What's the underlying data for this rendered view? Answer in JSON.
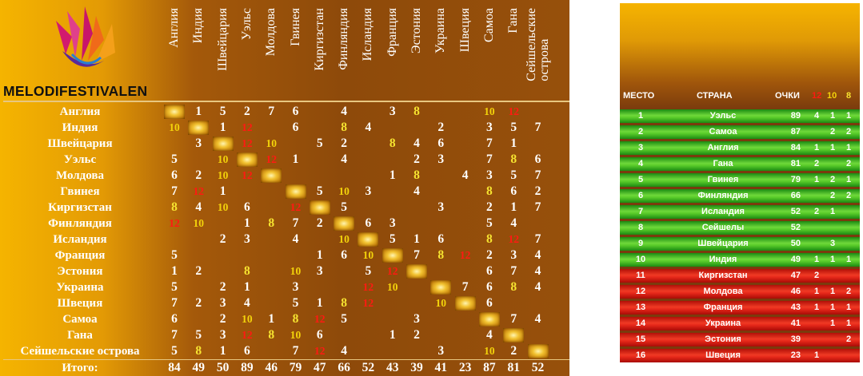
{
  "brand": {
    "logo_text": "MELODIFESTIVALEN"
  },
  "scoreboard": {
    "columns": [
      "Англия",
      "Индия",
      "Швейцария",
      "Уэльс",
      "Молдова",
      "Гвинея",
      "Киргизстан",
      "Финляндия",
      "Исландия",
      "Франция",
      "Эстония",
      "Украина",
      "Швеция",
      "Самоа",
      "Гана",
      "Сейшельские\nострова"
    ],
    "rows": [
      {
        "name": "Англия",
        "scores": [
          "",
          "1",
          "5",
          "2",
          "7",
          "6",
          "",
          "4",
          "",
          "3",
          "8",
          "",
          "",
          "10",
          "12",
          ""
        ]
      },
      {
        "name": "Индия",
        "scores": [
          "10",
          "",
          "1",
          "12",
          "",
          "6",
          "",
          "8",
          "4",
          "",
          "",
          "2",
          "",
          "3",
          "5",
          "7"
        ]
      },
      {
        "name": "Швейцария",
        "scores": [
          "",
          "3",
          "",
          "12",
          "10",
          "",
          "5",
          "2",
          "",
          "8",
          "4",
          "6",
          "",
          "7",
          "1",
          ""
        ]
      },
      {
        "name": "Уэльс",
        "scores": [
          "5",
          "",
          "10",
          "",
          "12",
          "1",
          "",
          "4",
          "",
          "",
          "2",
          "3",
          "",
          "7",
          "8",
          "6"
        ]
      },
      {
        "name": "Молдова",
        "scores": [
          "6",
          "2",
          "10",
          "12",
          "",
          "",
          "",
          "",
          "",
          "1",
          "8",
          "",
          "4",
          "3",
          "5",
          "7"
        ]
      },
      {
        "name": "Гвинея",
        "scores": [
          "7",
          "12",
          "1",
          "",
          "",
          "",
          "5",
          "10",
          "3",
          "",
          "4",
          "",
          "",
          "8",
          "6",
          "2"
        ]
      },
      {
        "name": "Киргизстан",
        "scores": [
          "8",
          "4",
          "10",
          "6",
          "",
          "12",
          "",
          "5",
          "",
          "",
          "",
          "3",
          "",
          "2",
          "1",
          "7"
        ]
      },
      {
        "name": "Финляндия",
        "scores": [
          "12",
          "10",
          "",
          "1",
          "8",
          "7",
          "2",
          "",
          "6",
          "3",
          "",
          "",
          "",
          "5",
          "4",
          ""
        ]
      },
      {
        "name": "Исландия",
        "scores": [
          "",
          "",
          "2",
          "3",
          "",
          "4",
          "",
          "10",
          "",
          "5",
          "1",
          "6",
          "",
          "8",
          "12",
          "7"
        ]
      },
      {
        "name": "Франция",
        "scores": [
          "5",
          "",
          "",
          "",
          "",
          "",
          "1",
          "6",
          "10",
          "",
          "7",
          "8",
          "12",
          "2",
          "3",
          "4"
        ]
      },
      {
        "name": "Эстония",
        "scores": [
          "1",
          "2",
          "",
          "8",
          "",
          "10",
          "3",
          "",
          "5",
          "12",
          "",
          "",
          "",
          "6",
          "7",
          "4"
        ]
      },
      {
        "name": "Украина",
        "scores": [
          "5",
          "",
          "2",
          "1",
          "",
          "3",
          "",
          "",
          "12",
          "10",
          "",
          "",
          "7",
          "6",
          "8",
          "4"
        ]
      },
      {
        "name": "Швеция",
        "scores": [
          "7",
          "2",
          "3",
          "4",
          "",
          "5",
          "1",
          "8",
          "12",
          "",
          "",
          "10",
          "",
          "6",
          "",
          ""
        ]
      },
      {
        "name": "Самоа",
        "scores": [
          "6",
          "",
          "2",
          "10",
          "1",
          "8",
          "12",
          "5",
          "",
          "",
          "3",
          "",
          "",
          "",
          "7",
          "4"
        ]
      },
      {
        "name": "Гана",
        "scores": [
          "7",
          "5",
          "3",
          "12",
          "8",
          "10",
          "6",
          "",
          "",
          "1",
          "2",
          "",
          "",
          "4",
          "",
          ""
        ]
      },
      {
        "name": "Сейшельские острова",
        "scores": [
          "5",
          "8",
          "1",
          "6",
          "",
          "7",
          "12",
          "4",
          "",
          "",
          "",
          "3",
          "",
          "10",
          "2",
          ""
        ]
      }
    ],
    "total_label": "Итого:",
    "totals": [
      "84",
      "49",
      "50",
      "89",
      "46",
      "79",
      "47",
      "66",
      "52",
      "43",
      "39",
      "41",
      "23",
      "87",
      "81",
      "52"
    ]
  },
  "standings": {
    "headers": {
      "place": "МЕСТО",
      "country": "СТРАНА",
      "points": "ОЧКИ",
      "c12": "12",
      "c10": "10",
      "c8": "8"
    },
    "rows": [
      {
        "place": "1",
        "country": "Уэльс",
        "points": "89",
        "c12": "4",
        "c10": "1",
        "c8": "1",
        "status": "green"
      },
      {
        "place": "2",
        "country": "Самоа",
        "points": "87",
        "c12": "",
        "c10": "2",
        "c8": "2",
        "status": "green"
      },
      {
        "place": "3",
        "country": "Англия",
        "points": "84",
        "c12": "1",
        "c10": "1",
        "c8": "1",
        "status": "green"
      },
      {
        "place": "4",
        "country": "Гана",
        "points": "81",
        "c12": "2",
        "c10": "",
        "c8": "2",
        "status": "green"
      },
      {
        "place": "5",
        "country": "Гвинея",
        "points": "79",
        "c12": "1",
        "c10": "2",
        "c8": "1",
        "status": "green"
      },
      {
        "place": "6",
        "country": "Финляндия",
        "points": "66",
        "c12": "",
        "c10": "2",
        "c8": "2",
        "status": "green"
      },
      {
        "place": "7",
        "country": "Исландия",
        "points": "52",
        "c12": "2",
        "c10": "1",
        "c8": "",
        "status": "green"
      },
      {
        "place": "8",
        "country": "Сейшелы",
        "points": "52",
        "c12": "",
        "c10": "",
        "c8": "",
        "status": "green"
      },
      {
        "place": "9",
        "country": "Швейцария",
        "points": "50",
        "c12": "",
        "c10": "3",
        "c8": "",
        "status": "green"
      },
      {
        "place": "10",
        "country": "Индия",
        "points": "49",
        "c12": "1",
        "c10": "1",
        "c8": "1",
        "status": "green"
      },
      {
        "place": "11",
        "country": "Киргизстан",
        "points": "47",
        "c12": "2",
        "c10": "",
        "c8": "",
        "status": "red"
      },
      {
        "place": "12",
        "country": "Молдова",
        "points": "46",
        "c12": "1",
        "c10": "1",
        "c8": "2",
        "status": "red"
      },
      {
        "place": "13",
        "country": "Франция",
        "points": "43",
        "c12": "1",
        "c10": "1",
        "c8": "1",
        "status": "red"
      },
      {
        "place": "14",
        "country": "Украина",
        "points": "41",
        "c12": "",
        "c10": "1",
        "c8": "1",
        "status": "red"
      },
      {
        "place": "15",
        "country": "Эстония",
        "points": "39",
        "c12": "",
        "c10": "",
        "c8": "2",
        "status": "red"
      },
      {
        "place": "16",
        "country": "Швеция",
        "points": "23",
        "c12": "1",
        "c10": "",
        "c8": "",
        "status": "red"
      }
    ]
  },
  "colors": {
    "points_12": "#ff1a12",
    "points_10": "#f3d30b",
    "points_8": "#f6e330",
    "qualified": "#5acc2a",
    "eliminated": "#e6281a"
  }
}
